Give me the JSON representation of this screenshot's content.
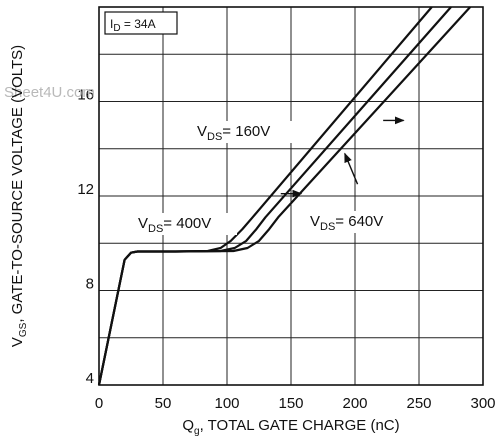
{
  "chart_data": {
    "type": "line",
    "xlabel": "Q_g, TOTAL GATE CHARGE (nC)",
    "xlabel_main": "Q",
    "xlabel_sub": "g",
    "xlabel_rest": ", TOTAL GATE CHARGE (nC)",
    "ylabel": "V_GS, GATE-TO-SOURCE VOLTAGE (VOLTS)",
    "ylabel_main": "V",
    "ylabel_sub": "GS",
    "ylabel_rest": ", GATE-TO-SOURCE VOLTAGE (VOLTS)",
    "xlim": [
      0,
      300
    ],
    "ylim": [
      4,
      20
    ],
    "x_ticks": [
      "0",
      "50",
      "100",
      "150",
      "200",
      "250",
      "300"
    ],
    "x_tick_values": [
      0,
      50,
      100,
      150,
      200,
      250,
      300
    ],
    "y_ticks": [
      "4",
      "8",
      "12",
      "16"
    ],
    "y_tick_values": [
      4,
      8,
      12,
      16
    ],
    "grid": true,
    "condition_label": {
      "main": "I",
      "sub": "D",
      "rest": " = 34A"
    },
    "watermark": "Sheet4U.com",
    "series": [
      {
        "name": "V_DS = 400V",
        "label": {
          "main": "V",
          "sub": "DS",
          "rest": "= 400V"
        },
        "x": [
          0,
          20,
          25,
          30,
          40,
          60,
          85,
          95,
          103,
          112,
          120,
          260
        ],
        "y": [
          4,
          9.3,
          9.6,
          9.65,
          9.65,
          9.65,
          9.67,
          9.8,
          10.1,
          10.6,
          11.1,
          20
        ]
      },
      {
        "name": "V_DS = 160V",
        "label": {
          "main": "V",
          "sub": "DS",
          "rest": "= 160V"
        },
        "x": [
          0,
          20,
          25,
          30,
          40,
          60,
          95,
          106,
          115,
          123,
          130,
          275
        ],
        "y": [
          4,
          9.3,
          9.6,
          9.65,
          9.65,
          9.65,
          9.67,
          9.8,
          10.1,
          10.6,
          11.1,
          20
        ]
      },
      {
        "name": "V_DS = 640V",
        "label": {
          "main": "V",
          "sub": "DS",
          "rest": "= 640V"
        },
        "x": [
          0,
          20,
          25,
          30,
          40,
          60,
          105,
          116,
          125,
          133,
          140,
          290
        ],
        "y": [
          4,
          9.3,
          9.6,
          9.65,
          9.65,
          9.65,
          9.67,
          9.8,
          10.1,
          10.6,
          11.1,
          20
        ]
      }
    ],
    "annotations": [
      {
        "series": "V_DS = 160V",
        "arrow_from": [
          222,
          15.2
        ],
        "arrow_to": [
          238,
          15.2
        ]
      },
      {
        "series": "V_DS = 400V",
        "arrow_from": [
          142,
          12.1
        ],
        "arrow_to": [
          158,
          12.1
        ]
      },
      {
        "series": "V_DS = 640V",
        "arrow_from": [
          202,
          12.5
        ],
        "arrow_to": [
          192,
          13.8
        ]
      }
    ]
  }
}
